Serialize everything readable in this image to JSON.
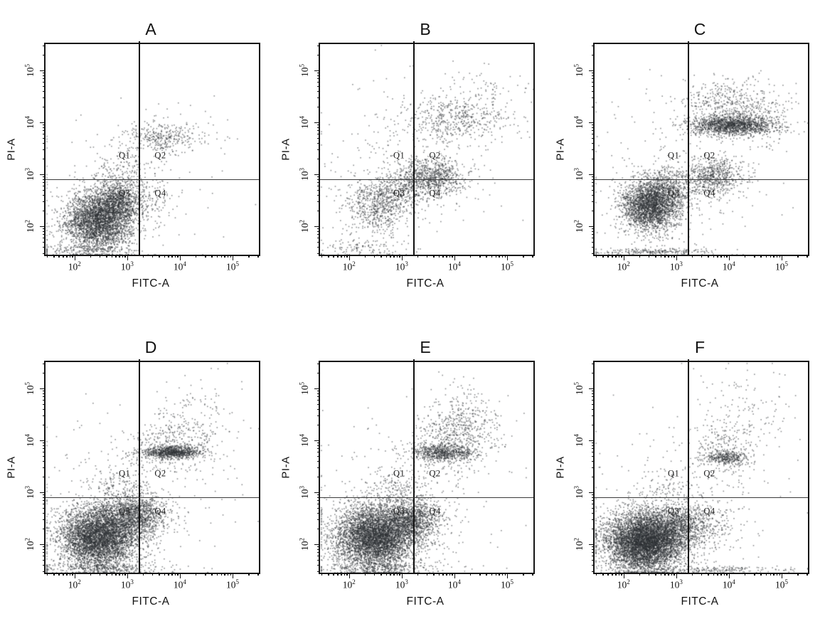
{
  "figure": {
    "description": "Six-panel flow cytometry dot plots, FITC-A vs PI-A, quadrant gated",
    "point_color": "#2d3135",
    "gate_color": "#101010"
  },
  "chart_data": [
    {
      "type": "scatter",
      "label": "A",
      "xlabel": "FITC-A",
      "ylabel": "PI-A",
      "xlim": [
        1.45,
        5.5
      ],
      "ylim": [
        1.45,
        5.5
      ],
      "scale": "log10",
      "x_tick_exponents": [
        2,
        3,
        4,
        5
      ],
      "y_tick_exponents": [
        2,
        3,
        4,
        5
      ],
      "gates": {
        "x": 3.22,
        "y": 2.9
      },
      "quadrants": [
        {
          "label": "Q1",
          "x": 2.95,
          "y": 3.35
        },
        {
          "label": "Q2",
          "x": 3.63,
          "y": 3.35
        },
        {
          "label": "Q3",
          "x": 2.95,
          "y": 2.62
        },
        {
          "label": "Q4",
          "x": 3.63,
          "y": 2.62
        }
      ],
      "seed": 11,
      "clusters": [
        {
          "cx": 2.45,
          "cy": 2.1,
          "sx": 0.33,
          "sy": 0.28,
          "n": 3200
        },
        {
          "cx": 2.8,
          "cy": 2.5,
          "sx": 0.25,
          "sy": 0.18,
          "n": 900
        },
        {
          "cx": 2.9,
          "cy": 3.05,
          "sx": 0.3,
          "sy": 0.3,
          "n": 220
        },
        {
          "cx": 3.65,
          "cy": 3.72,
          "sx": 0.28,
          "sy": 0.13,
          "n": 260
        },
        {
          "cx": 4.05,
          "cy": 3.8,
          "sx": 0.45,
          "sy": 0.25,
          "n": 90
        },
        {
          "cx": 3.45,
          "cy": 2.45,
          "sx": 0.28,
          "sy": 0.25,
          "n": 130
        },
        {
          "cx": 3.0,
          "cy": 2.8,
          "sx": 0.9,
          "sy": 0.7,
          "n": 150
        },
        {
          "cx": 2.2,
          "cy": 1.55,
          "sx": 0.45,
          "sy": 0.05,
          "n": 150
        }
      ]
    },
    {
      "type": "scatter",
      "label": "B",
      "xlabel": "FITC-A",
      "ylabel": "PI-A",
      "xlim": [
        1.45,
        5.5
      ],
      "ylim": [
        1.45,
        5.5
      ],
      "scale": "log10",
      "x_tick_exponents": [
        2,
        3,
        4,
        5
      ],
      "y_tick_exponents": [
        2,
        3,
        4,
        5
      ],
      "gates": {
        "x": 3.22,
        "y": 2.9
      },
      "quadrants": [
        {
          "label": "Q1",
          "x": 2.95,
          "y": 3.35
        },
        {
          "label": "Q2",
          "x": 3.63,
          "y": 3.35
        },
        {
          "label": "Q3",
          "x": 2.95,
          "y": 2.62
        },
        {
          "label": "Q4",
          "x": 3.63,
          "y": 2.62
        }
      ],
      "seed": 22,
      "clusters": [
        {
          "cx": 2.5,
          "cy": 2.4,
          "sx": 0.3,
          "sy": 0.26,
          "n": 650
        },
        {
          "cx": 2.95,
          "cy": 2.7,
          "sx": 0.25,
          "sy": 0.2,
          "n": 300
        },
        {
          "cx": 3.55,
          "cy": 2.95,
          "sx": 0.32,
          "sy": 0.18,
          "n": 850
        },
        {
          "cx": 3.9,
          "cy": 4.05,
          "sx": 0.45,
          "sy": 0.22,
          "n": 420
        },
        {
          "cx": 4.55,
          "cy": 4.35,
          "sx": 0.4,
          "sy": 0.35,
          "n": 160
        },
        {
          "cx": 3.2,
          "cy": 3.3,
          "sx": 0.9,
          "sy": 0.8,
          "n": 240
        },
        {
          "cx": 2.3,
          "cy": 1.6,
          "sx": 0.5,
          "sy": 0.08,
          "n": 120
        }
      ]
    },
    {
      "type": "scatter",
      "label": "C",
      "xlabel": "FITC-A",
      "ylabel": "PI-A",
      "xlim": [
        1.45,
        5.5
      ],
      "ylim": [
        1.45,
        5.5
      ],
      "scale": "log10",
      "x_tick_exponents": [
        2,
        3,
        4,
        5
      ],
      "y_tick_exponents": [
        2,
        3,
        4,
        5
      ],
      "gates": {
        "x": 3.22,
        "y": 2.9
      },
      "quadrants": [
        {
          "label": "Q1",
          "x": 2.95,
          "y": 3.35
        },
        {
          "label": "Q2",
          "x": 3.63,
          "y": 3.35
        },
        {
          "label": "Q3",
          "x": 2.95,
          "y": 2.62
        },
        {
          "label": "Q4",
          "x": 3.63,
          "y": 2.62
        }
      ],
      "seed": 33,
      "clusters": [
        {
          "cx": 2.5,
          "cy": 2.4,
          "sx": 0.27,
          "sy": 0.24,
          "n": 2600
        },
        {
          "cx": 2.85,
          "cy": 2.75,
          "sx": 0.25,
          "sy": 0.2,
          "n": 500
        },
        {
          "cx": 4.05,
          "cy": 3.95,
          "sx": 0.4,
          "sy": 0.1,
          "n": 1500
        },
        {
          "cx": 4.0,
          "cy": 4.35,
          "sx": 0.45,
          "sy": 0.25,
          "n": 450
        },
        {
          "cx": 3.7,
          "cy": 2.95,
          "sx": 0.28,
          "sy": 0.18,
          "n": 650
        },
        {
          "cx": 3.3,
          "cy": 3.1,
          "sx": 0.9,
          "sy": 0.8,
          "n": 280
        },
        {
          "cx": 2.5,
          "cy": 1.52,
          "sx": 0.55,
          "sy": 0.03,
          "n": 220
        },
        {
          "cx": 4.6,
          "cy": 4.0,
          "sx": 0.3,
          "sy": 0.3,
          "n": 120
        }
      ]
    },
    {
      "type": "scatter",
      "label": "D",
      "xlabel": "FITC-A",
      "ylabel": "PI-A",
      "xlim": [
        1.45,
        5.5
      ],
      "ylim": [
        1.45,
        5.5
      ],
      "scale": "log10",
      "x_tick_exponents": [
        2,
        3,
        4,
        5
      ],
      "y_tick_exponents": [
        2,
        3,
        4,
        5
      ],
      "gates": {
        "x": 3.22,
        "y": 2.9
      },
      "quadrants": [
        {
          "label": "Q1",
          "x": 2.95,
          "y": 3.35
        },
        {
          "label": "Q2",
          "x": 3.63,
          "y": 3.35
        },
        {
          "label": "Q3",
          "x": 2.95,
          "y": 2.62
        },
        {
          "label": "Q4",
          "x": 3.63,
          "y": 2.62
        }
      ],
      "seed": 44,
      "clusters": [
        {
          "cx": 2.45,
          "cy": 2.15,
          "sx": 0.38,
          "sy": 0.3,
          "n": 4800
        },
        {
          "cx": 3.15,
          "cy": 2.55,
          "sx": 0.3,
          "sy": 0.2,
          "n": 1200
        },
        {
          "cx": 3.85,
          "cy": 3.78,
          "sx": 0.28,
          "sy": 0.06,
          "n": 850
        },
        {
          "cx": 3.85,
          "cy": 3.9,
          "sx": 0.4,
          "sy": 0.28,
          "n": 380
        },
        {
          "cx": 2.85,
          "cy": 3.05,
          "sx": 0.3,
          "sy": 0.28,
          "n": 200
        },
        {
          "cx": 4.35,
          "cy": 4.45,
          "sx": 0.4,
          "sy": 0.4,
          "n": 110
        },
        {
          "cx": 3.1,
          "cy": 2.9,
          "sx": 0.9,
          "sy": 0.75,
          "n": 280
        },
        {
          "cx": 2.6,
          "cy": 1.55,
          "sx": 0.6,
          "sy": 0.05,
          "n": 260
        }
      ]
    },
    {
      "type": "scatter",
      "label": "E",
      "xlabel": "FITC-A",
      "ylabel": "PI-A",
      "xlim": [
        1.45,
        5.5
      ],
      "ylim": [
        1.45,
        5.5
      ],
      "scale": "log10",
      "x_tick_exponents": [
        2,
        3,
        4,
        5
      ],
      "y_tick_exponents": [
        2,
        3,
        4,
        5
      ],
      "gates": {
        "x": 3.22,
        "y": 2.9
      },
      "quadrants": [
        {
          "label": "Q1",
          "x": 2.95,
          "y": 3.35
        },
        {
          "label": "Q2",
          "x": 3.63,
          "y": 3.35
        },
        {
          "label": "Q3",
          "x": 2.95,
          "y": 2.62
        },
        {
          "label": "Q4",
          "x": 3.63,
          "y": 2.62
        }
      ],
      "seed": 55,
      "clusters": [
        {
          "cx": 2.5,
          "cy": 2.15,
          "sx": 0.4,
          "sy": 0.3,
          "n": 5200
        },
        {
          "cx": 3.2,
          "cy": 2.5,
          "sx": 0.28,
          "sy": 0.2,
          "n": 1000
        },
        {
          "cx": 3.78,
          "cy": 3.77,
          "sx": 0.3,
          "sy": 0.08,
          "n": 650
        },
        {
          "cx": 3.95,
          "cy": 4.0,
          "sx": 0.4,
          "sy": 0.3,
          "n": 400
        },
        {
          "cx": 4.15,
          "cy": 4.35,
          "sx": 0.35,
          "sy": 0.35,
          "n": 300
        },
        {
          "cx": 2.9,
          "cy": 3.05,
          "sx": 0.3,
          "sy": 0.28,
          "n": 180
        },
        {
          "cx": 3.1,
          "cy": 2.9,
          "sx": 0.9,
          "sy": 0.75,
          "n": 260
        },
        {
          "cx": 2.6,
          "cy": 1.55,
          "sx": 0.6,
          "sy": 0.05,
          "n": 220
        }
      ]
    },
    {
      "type": "scatter",
      "label": "F",
      "xlabel": "FITC-A",
      "ylabel": "PI-A",
      "xlim": [
        1.45,
        5.5
      ],
      "ylim": [
        1.45,
        5.5
      ],
      "scale": "log10",
      "x_tick_exponents": [
        2,
        3,
        4,
        5
      ],
      "y_tick_exponents": [
        2,
        3,
        4,
        5
      ],
      "gates": {
        "x": 3.22,
        "y": 2.9
      },
      "quadrants": [
        {
          "label": "Q1",
          "x": 2.95,
          "y": 3.35
        },
        {
          "label": "Q2",
          "x": 3.63,
          "y": 3.35
        },
        {
          "label": "Q3",
          "x": 2.95,
          "y": 2.62
        },
        {
          "label": "Q4",
          "x": 3.63,
          "y": 2.62
        }
      ],
      "seed": 66,
      "clusters": [
        {
          "cx": 2.4,
          "cy": 2.05,
          "sx": 0.37,
          "sy": 0.28,
          "n": 6000
        },
        {
          "cx": 3.0,
          "cy": 2.35,
          "sx": 0.3,
          "sy": 0.2,
          "n": 900
        },
        {
          "cx": 3.95,
          "cy": 3.67,
          "sx": 0.2,
          "sy": 0.07,
          "n": 320
        },
        {
          "cx": 3.9,
          "cy": 3.82,
          "sx": 0.35,
          "sy": 0.28,
          "n": 240
        },
        {
          "cx": 4.4,
          "cy": 4.5,
          "sx": 0.45,
          "sy": 0.45,
          "n": 130
        },
        {
          "cx": 3.5,
          "cy": 2.35,
          "sx": 0.35,
          "sy": 0.3,
          "n": 240
        },
        {
          "cx": 2.85,
          "cy": 3.05,
          "sx": 0.28,
          "sy": 0.25,
          "n": 120
        },
        {
          "cx": 3.3,
          "cy": 3.0,
          "sx": 0.9,
          "sy": 0.8,
          "n": 180
        },
        {
          "cx": 3.6,
          "cy": 1.52,
          "sx": 0.8,
          "sy": 0.03,
          "n": 200
        }
      ]
    }
  ]
}
